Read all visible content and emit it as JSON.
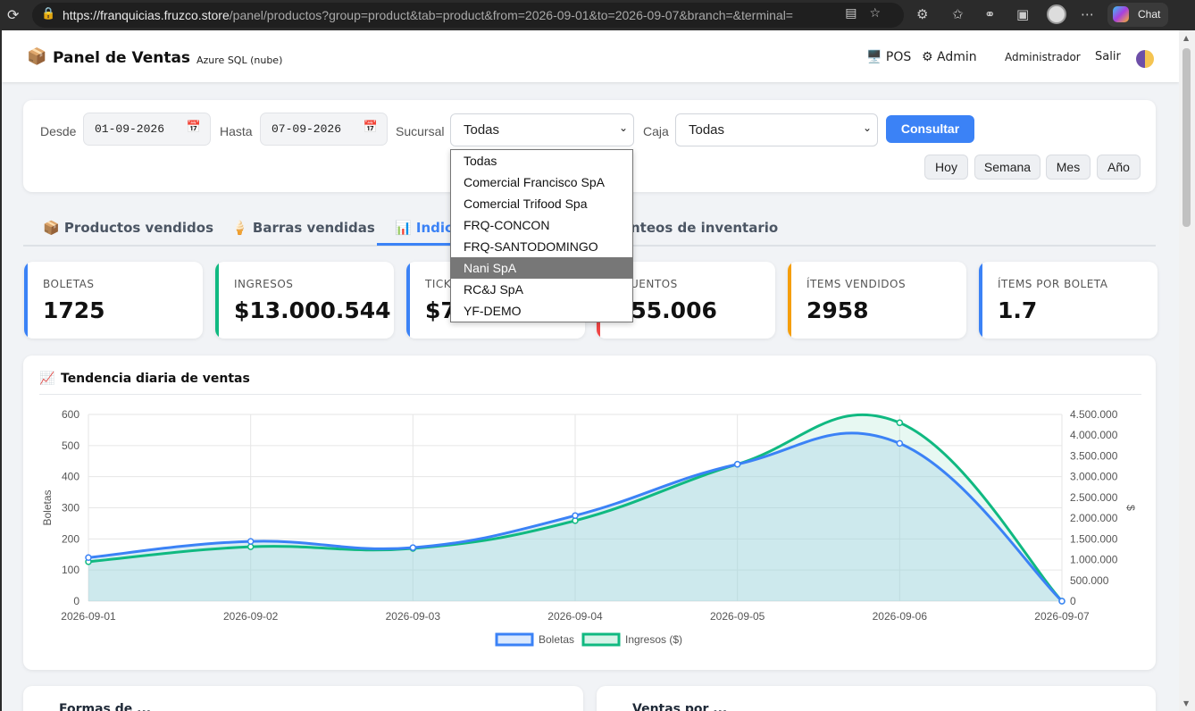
{
  "browser": {
    "url_host": "https://franquicias.fruzco.store",
    "url_path": "/panel/productos?group=product&tab=product&from=2026-09-01&to=2026-09-07&branch=&terminal=",
    "chat_label": "Chat"
  },
  "header": {
    "title": "Panel de Ventas",
    "db_badge": "Azure SQL (nube)",
    "pos_label": "POS",
    "admin_label": "Admin",
    "user": "Administrador",
    "logout": "Salir"
  },
  "filters": {
    "desde_label": "Desde",
    "desde_value": "01-09-2026",
    "hasta_label": "Hasta",
    "hasta_value": "07-09-2026",
    "sucursal_label": "Sucursal",
    "sucursal_value": "Todas",
    "caja_label": "Caja",
    "caja_value": "Todas",
    "consultar": "Consultar",
    "quick": [
      "Hoy",
      "Semana",
      "Mes",
      "Año"
    ]
  },
  "sucursal_options": [
    "Todas",
    "Comercial Francisco SpA",
    "Comercial Trifood Spa",
    "FRQ-CONCON",
    "FRQ-SANTODOMINGO",
    "Nani SpA",
    "RC&J SpA",
    "YF-DEMO"
  ],
  "sucursal_highlighted": "Nani SpA",
  "tabs": [
    {
      "icon": "📦",
      "label": "Productos vendidos"
    },
    {
      "icon": "🍦",
      "label": "Barras vendidas"
    },
    {
      "icon": "📊",
      "label": "Indica"
    },
    {
      "icon": "",
      "label": "nteos de inventario"
    }
  ],
  "kpis": [
    {
      "label": "BOLETAS",
      "value": "1725",
      "color": "#3b82f6"
    },
    {
      "label": "INGRESOS",
      "value": "$13.000.544",
      "color": "#10b981"
    },
    {
      "label": "TICK",
      "value": "$7",
      "color": "#3b82f6"
    },
    {
      "label": "SCUENTOS",
      "value": "255.006",
      "color": "#ef4444"
    },
    {
      "label": "ÍTEMS VENDIDOS",
      "value": "2958",
      "color": "#f59e0b"
    },
    {
      "label": "ÍTEMS POR BOLETA",
      "value": "1.7",
      "color": "#3b82f6"
    }
  ],
  "chart_section": {
    "title": "Tendencia diaria de ventas",
    "icon": "📈"
  },
  "chart_data": {
    "type": "line",
    "x": [
      "2026-09-01",
      "2026-09-02",
      "2026-09-03",
      "2026-09-04",
      "2026-09-05",
      "2026-09-06",
      "2026-09-07"
    ],
    "series": [
      {
        "name": "Boletas",
        "axis": "left",
        "color": "#3b82f6",
        "values": [
          140,
          192,
          172,
          275,
          440,
          507,
          0
        ]
      },
      {
        "name": "Ingresos ($)",
        "axis": "right",
        "color": "#10b981",
        "values": [
          950000,
          1310000,
          1270000,
          1940000,
          3300000,
          4300000,
          0
        ]
      }
    ],
    "ylabel": "Boletas",
    "y2label": "$",
    "ylim": [
      0,
      600
    ],
    "y2lim": [
      0,
      4500000
    ],
    "yticks": [
      "0",
      "100",
      "200",
      "300",
      "400",
      "500",
      "600"
    ],
    "y2ticks": [
      "0",
      "500.000",
      "1.000.000",
      "1.500.000",
      "2.000.000",
      "2.500.000",
      "3.000.000",
      "3.500.000",
      "4.000.000",
      "4.500.000"
    ],
    "grid": true,
    "legend": "bottom"
  },
  "bottom_cards": [
    {
      "title": "Formas de ..."
    },
    {
      "title": "Ventas por ..."
    }
  ]
}
